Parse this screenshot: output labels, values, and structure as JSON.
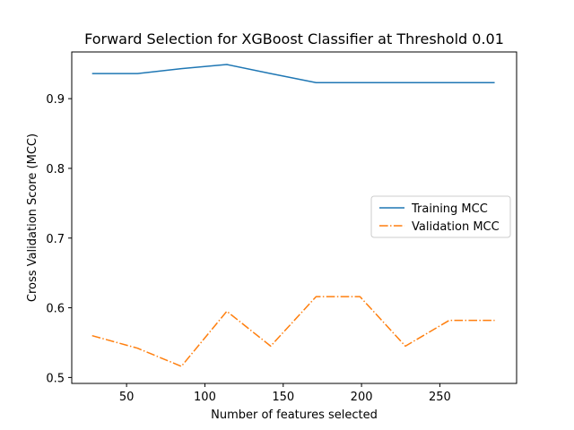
{
  "chart_data": {
    "type": "line",
    "title": "Forward Selection for XGBoost Classifier at Threshold 0.01",
    "xlabel": "Number of features selected",
    "ylabel": "Cross Validation Score (MCC)",
    "xlim": [
      15,
      299
    ],
    "ylim": [
      0.4915,
      0.967
    ],
    "xticks": [
      50,
      100,
      150,
      200,
      250
    ],
    "yticks": [
      0.5,
      0.6,
      0.7,
      0.8,
      0.9
    ],
    "grid": false,
    "legend_position": "center-right",
    "series": [
      {
        "name": "Training MCC",
        "color": "#1f77b4",
        "style": "solid",
        "x": [
          28,
          57,
          85,
          114,
          142,
          171,
          199,
          228,
          256,
          285
        ],
        "y": [
          0.936,
          0.936,
          0.943,
          0.949,
          0.936,
          0.923,
          0.923,
          0.923,
          0.923,
          0.923
        ]
      },
      {
        "name": "Validation MCC",
        "color": "#ff7f0e",
        "style": "dashdot",
        "x": [
          28,
          57,
          85,
          114,
          142,
          171,
          199,
          228,
          256,
          285
        ],
        "y": [
          0.56,
          0.542,
          0.516,
          0.595,
          0.545,
          0.616,
          0.616,
          0.545,
          0.582,
          0.582
        ]
      }
    ]
  }
}
